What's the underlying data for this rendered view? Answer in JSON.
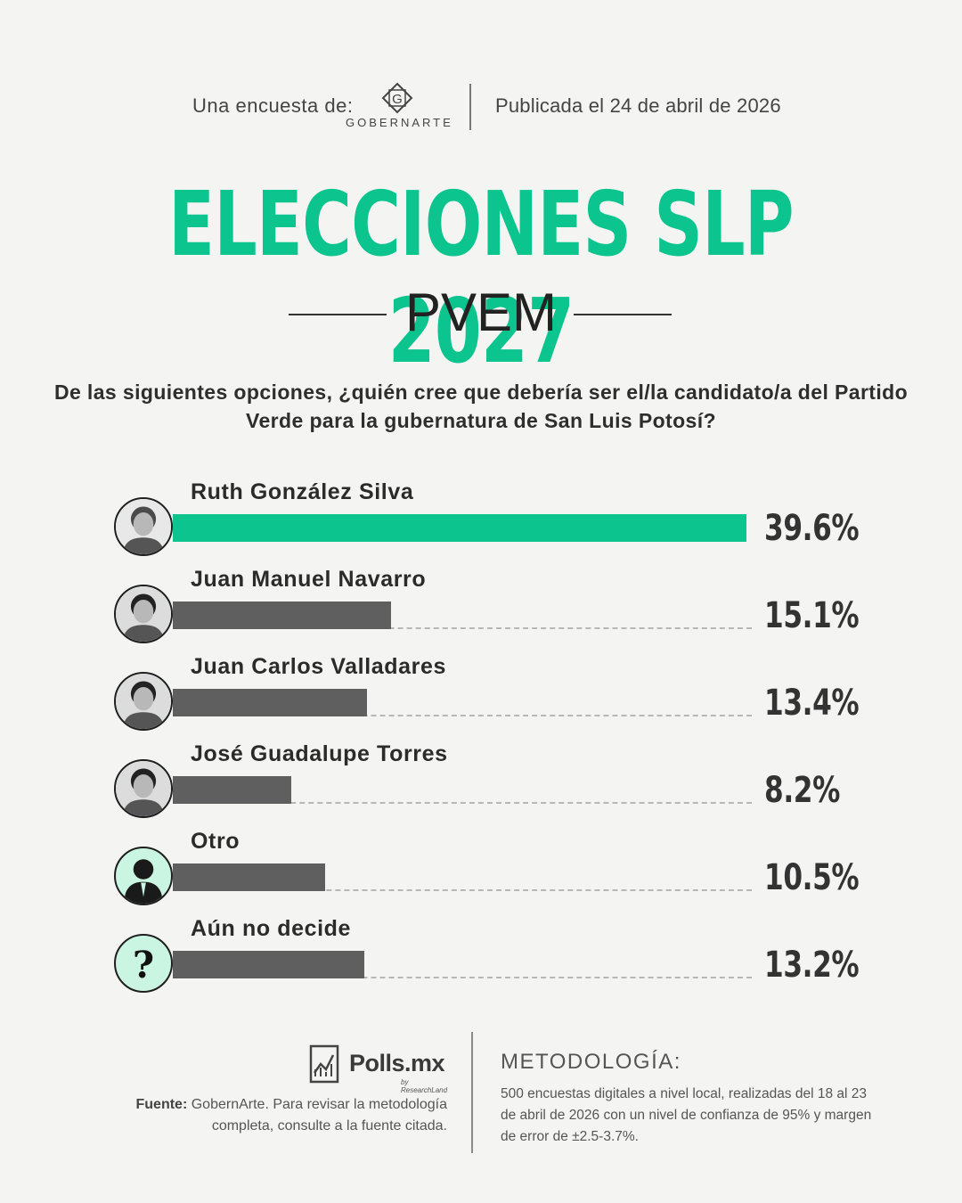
{
  "header": {
    "intro": "Una encuesta de:",
    "logo_letter": "G",
    "logo_text": "GOBERNARTE",
    "published": "Publicada el 24 de abril de 2026"
  },
  "title": "ELECCIONES SLP 2027",
  "subtitle": "PVEM",
  "question": "De las siguientes opciones, ¿quién cree que debería ser el/la candidato/a del Partido Verde para la gubernatura de San Luis Potosí?",
  "colors": {
    "accent": "#0cc48d",
    "bar_default": "#5f5f5f",
    "avatar_bg": "#c9f5e2"
  },
  "chart_data": {
    "type": "bar",
    "orientation": "horizontal",
    "unit": "%",
    "categories": [
      "Ruth González Silva",
      "Juan Manuel Navarro",
      "Juan Carlos Valladares",
      "José Guadalupe Torres",
      "Otro",
      "Aún no decide"
    ],
    "values": [
      39.6,
      15.1,
      13.4,
      8.2,
      10.5,
      13.2
    ],
    "value_labels": [
      "39.6%",
      "15.1%",
      "13.4%",
      "8.2%",
      "10.5%",
      "13.2%"
    ],
    "highlight_index": 0,
    "xlim": [
      0,
      40
    ],
    "grid": false,
    "legend": "none",
    "avatars": [
      "photo-icon",
      "photo-icon",
      "photo-icon",
      "photo-icon",
      "silhouette-icon",
      "question-icon"
    ],
    "avatar_glyph_question": "?"
  },
  "footer": {
    "brand": "Polls.mx",
    "brand_sub": "by ResearchLand",
    "source_label": "Fuente:",
    "source_text": "GobernArte. Para revisar la metodología completa, consulte a la fuente citada.",
    "methodology_title": "METODOLOGÍA:",
    "methodology_text": "500 encuestas digitales a nivel local, realizadas del 18 al 23 de abril de 2026 con un nivel de confianza de 95% y margen de error de ±2.5-3.7%."
  }
}
